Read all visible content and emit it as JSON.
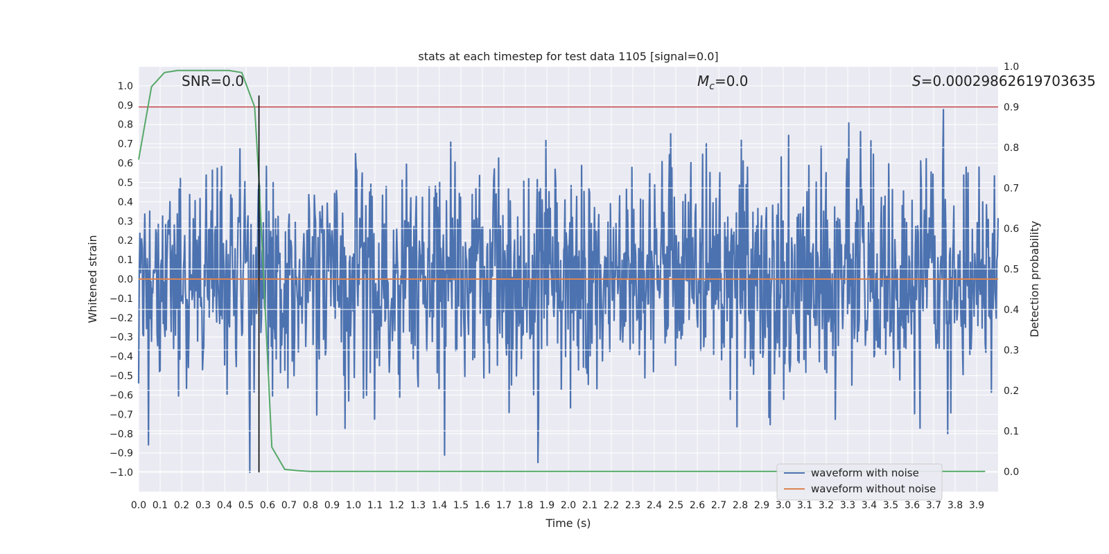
{
  "chart_data": {
    "type": "line",
    "title": "stats at each timestep for test data 1105 [signal=0.0]",
    "xlabel": "Time (s)",
    "ylabel": "Whitened strain",
    "y2label": "Detection probability",
    "xlim": [
      0.0,
      4.0
    ],
    "ylim": [
      -1.1,
      1.1
    ],
    "y2lim": [
      -0.05,
      1.0
    ],
    "x_ticks": [
      "0.0",
      "0.1",
      "0.2",
      "0.3",
      "0.4",
      "0.5",
      "0.6",
      "0.7",
      "0.8",
      "0.9",
      "1.0",
      "1.1",
      "1.2",
      "1.3",
      "1.4",
      "1.5",
      "1.6",
      "1.7",
      "1.8",
      "1.9",
      "2.0",
      "2.1",
      "2.2",
      "2.3",
      "2.4",
      "2.5",
      "2.6",
      "2.7",
      "2.8",
      "2.9",
      "3.0",
      "3.1",
      "3.2",
      "3.3",
      "3.4",
      "3.5",
      "3.6",
      "3.7",
      "3.8",
      "3.9"
    ],
    "y_ticks": [
      "1.0",
      "0.9",
      "0.8",
      "0.7",
      "0.6",
      "0.5",
      "0.4",
      "0.3",
      "0.2",
      "0.1",
      "0.0",
      "-0.1",
      "-0.2",
      "-0.3",
      "-0.4",
      "-0.5",
      "-0.6",
      "-0.7",
      "-0.8",
      "-0.9",
      "-1.0"
    ],
    "y2_ticks": [
      "1.0",
      "0.9",
      "0.8",
      "0.7",
      "0.6",
      "0.5",
      "0.4",
      "0.3",
      "0.2",
      "0.1",
      "0.0"
    ],
    "annotations": {
      "snr": "SNR=0.0",
      "mc_symbol": "M",
      "mc_sub": "c",
      "mc_value": "=0.0",
      "s_symbol": "S",
      "s_value": "=0.00029862619703635"
    },
    "legend": {
      "position": "lower-right",
      "entries": [
        "waveform with noise",
        "waveform without noise"
      ]
    },
    "series": [
      {
        "name": "waveform with noise",
        "axis": "left",
        "color": "#4c72b0",
        "description": "dense whitened noise, amplitude roughly -1.0 to 0.95",
        "noise_seed": 1105,
        "n_points": 1400
      },
      {
        "name": "waveform without noise",
        "axis": "left",
        "color": "#dd8452",
        "x": [
          0.0,
          4.0
        ],
        "values": [
          0.0,
          0.0
        ]
      },
      {
        "name": "Detection probability",
        "axis": "right",
        "color": "#55a868",
        "x": [
          0.0,
          0.06,
          0.12,
          0.18,
          0.24,
          0.3,
          0.36,
          0.42,
          0.48,
          0.54,
          0.56,
          0.62,
          0.68,
          0.74,
          0.8,
          0.9,
          1.0,
          2.0,
          3.0,
          3.94
        ],
        "values": [
          0.77,
          0.95,
          0.985,
          0.99,
          0.99,
          0.99,
          0.99,
          0.99,
          0.985,
          0.9,
          0.72,
          0.06,
          0.005,
          0.002,
          0.0,
          0.0,
          0.0,
          0.0,
          0.0,
          0.0
        ]
      }
    ],
    "hlines": [
      {
        "name": "threshold-line",
        "axis": "right",
        "value": 0.9,
        "color": "#c44e52"
      }
    ],
    "vlines": [
      {
        "name": "detection-time-line",
        "x": 0.56,
        "y_range": [
          -1.0,
          0.95
        ],
        "color": "#000000"
      }
    ]
  }
}
